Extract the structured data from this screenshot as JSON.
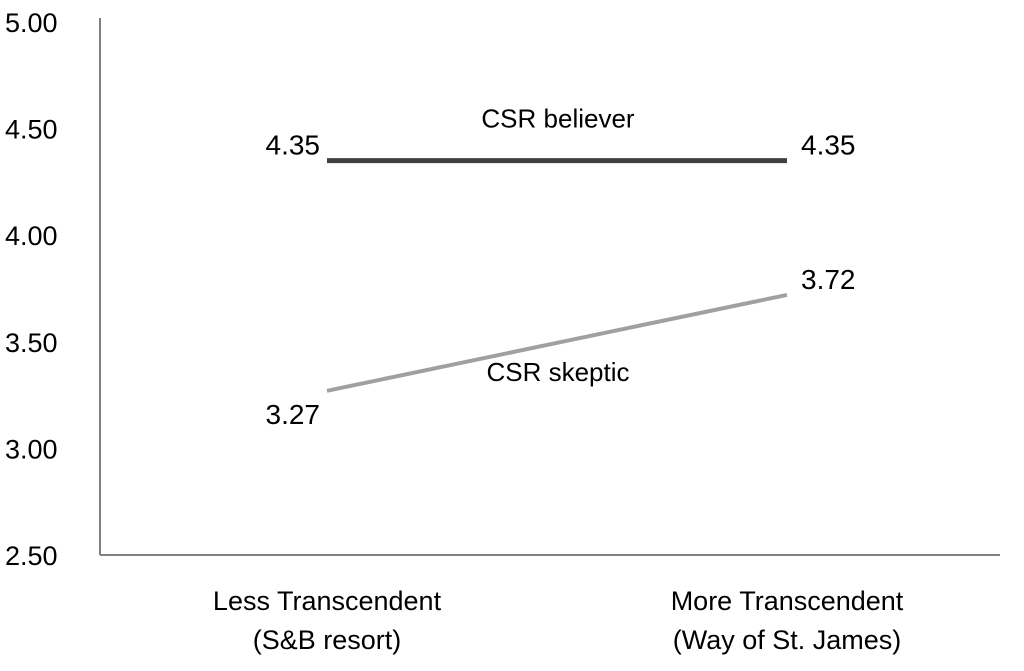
{
  "chart_data": {
    "type": "line",
    "categories": [
      [
        "Less Transcendent",
        "(S&B resort)"
      ],
      [
        "More Transcendent",
        "(Way of St. James)"
      ]
    ],
    "ylim": [
      2.5,
      5.0
    ],
    "yticks": [
      "2.50",
      "3.00",
      "3.50",
      "4.00",
      "4.50",
      "5.00"
    ],
    "grid": false,
    "series": [
      {
        "name": "CSR believer",
        "values": [
          4.35,
          4.35
        ],
        "value_labels": [
          "4.35",
          "4.35"
        ],
        "color": "#404040"
      },
      {
        "name": "CSR skeptic",
        "values": [
          3.27,
          3.72
        ],
        "value_labels": [
          "3.27",
          "3.72"
        ],
        "color": "#a0a0a0"
      }
    ],
    "axis_color": "#808080"
  }
}
